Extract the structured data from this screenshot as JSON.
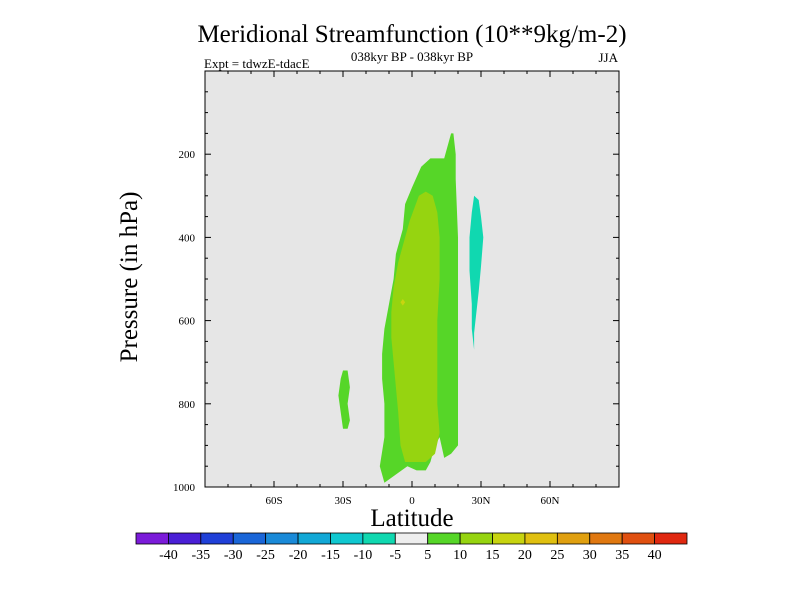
{
  "chart_data": {
    "type": "contour",
    "title": "Meridional Streamfunction (10**9kg/m-2)",
    "subtitle": "038kyr BP - 038kyr BP",
    "left_label": "Expt = tdwzE-tdacE",
    "right_label": "JJA",
    "xlabel": "Latitude",
    "ylabel": "Pressure (in hPa)",
    "xlim": [
      -90,
      90
    ],
    "ylim": [
      1000,
      0
    ],
    "x_ticks": [
      {
        "value": -60,
        "label": "60S"
      },
      {
        "value": -30,
        "label": "30S"
      },
      {
        "value": 0,
        "label": "0"
      },
      {
        "value": 30,
        "label": "30N"
      },
      {
        "value": 60,
        "label": "60N"
      }
    ],
    "y_ticks": [
      {
        "value": 200,
        "label": "200"
      },
      {
        "value": 400,
        "label": "400"
      },
      {
        "value": 600,
        "label": "600"
      },
      {
        "value": 800,
        "label": "800"
      },
      {
        "value": 1000,
        "label": "1000"
      }
    ],
    "background_color": "#e6e6e6",
    "colorbar": {
      "levels": [
        -40,
        -35,
        -30,
        -25,
        -20,
        -15,
        -10,
        -5,
        5,
        10,
        15,
        20,
        25,
        30,
        35,
        40
      ],
      "colors": [
        "#7b1bd9",
        "#4a1fd6",
        "#2040d8",
        "#1a66d8",
        "#1a8ad8",
        "#12a8d6",
        "#10c8d0",
        "#10d8b0",
        "#eeeeee",
        "#56d628",
        "#96d410",
        "#c8d410",
        "#e0c010",
        "#e0a010",
        "#e07810",
        "#e05010",
        "#e02810"
      ]
    },
    "regions": [
      {
        "name": "positive 5-10 central tongue",
        "level": 5,
        "color": "#56d628",
        "points": [
          [
            -12,
            990
          ],
          [
            -14,
            950
          ],
          [
            -12,
            880
          ],
          [
            -12,
            800
          ],
          [
            -13,
            740
          ],
          [
            -13,
            680
          ],
          [
            -12,
            620
          ],
          [
            -10,
            560
          ],
          [
            -8,
            500
          ],
          [
            -7,
            440
          ],
          [
            -4,
            380
          ],
          [
            -3,
            320
          ],
          [
            0,
            280
          ],
          [
            4,
            230
          ],
          [
            8,
            210
          ],
          [
            14,
            210
          ],
          [
            17,
            150
          ],
          [
            18,
            150
          ],
          [
            19,
            200
          ],
          [
            19,
            260
          ],
          [
            20,
            400
          ],
          [
            20,
            600
          ],
          [
            20,
            800
          ],
          [
            20,
            900
          ],
          [
            17,
            920
          ],
          [
            14,
            930
          ],
          [
            12,
            880
          ],
          [
            10,
            900
          ],
          [
            8,
            940
          ],
          [
            6,
            960
          ],
          [
            2,
            960
          ],
          [
            -2,
            950
          ]
        ]
      },
      {
        "name": "positive 5-10 southern blob",
        "level": 5,
        "color": "#56d628",
        "points": [
          [
            -28,
            720
          ],
          [
            -27,
            760
          ],
          [
            -28,
            800
          ],
          [
            -27,
            840
          ],
          [
            -28,
            860
          ],
          [
            -30,
            860
          ],
          [
            -31,
            820
          ],
          [
            -32,
            780
          ],
          [
            -31,
            740
          ],
          [
            -30,
            720
          ]
        ]
      },
      {
        "name": "positive 10-15 core",
        "level": 10,
        "color": "#96d410",
        "points": [
          [
            -3,
            940
          ],
          [
            -5,
            900
          ],
          [
            -6,
            820
          ],
          [
            -7,
            760
          ],
          [
            -8,
            700
          ],
          [
            -9,
            640
          ],
          [
            -9,
            580
          ],
          [
            -8,
            520
          ],
          [
            -6,
            460
          ],
          [
            -3,
            400
          ],
          [
            -1,
            360
          ],
          [
            3,
            300
          ],
          [
            6,
            290
          ],
          [
            9,
            300
          ],
          [
            11,
            340
          ],
          [
            12,
            400
          ],
          [
            12,
            500
          ],
          [
            11,
            600
          ],
          [
            11,
            700
          ],
          [
            11,
            800
          ],
          [
            12,
            870
          ],
          [
            10,
            920
          ],
          [
            6,
            940
          ],
          [
            2,
            940
          ]
        ]
      },
      {
        "name": "positive 15 speck",
        "level": 15,
        "color": "#c8d410",
        "points": [
          [
            -4,
            548
          ],
          [
            -3,
            556
          ],
          [
            -4,
            564
          ],
          [
            -5,
            556
          ]
        ]
      },
      {
        "name": "negative -5 to -10 northern band",
        "level": -5,
        "color": "#10d8b0",
        "points": [
          [
            27,
            300
          ],
          [
            29,
            310
          ],
          [
            30,
            350
          ],
          [
            31,
            400
          ],
          [
            30,
            470
          ],
          [
            29,
            530
          ],
          [
            28,
            580
          ],
          [
            27,
            630
          ],
          [
            27,
            670
          ],
          [
            26,
            620
          ],
          [
            26,
            560
          ],
          [
            25,
            480
          ],
          [
            25,
            400
          ],
          [
            26,
            340
          ]
        ]
      }
    ]
  }
}
